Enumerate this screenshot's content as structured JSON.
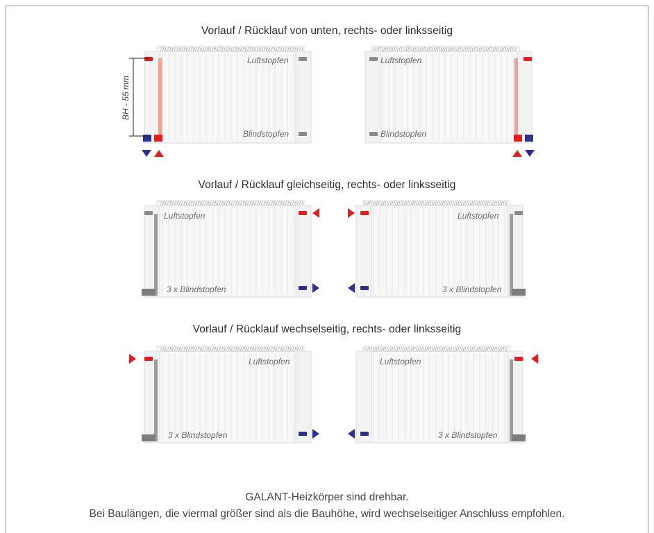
{
  "rows": [
    {
      "title": "Vorlauf / Rücklauf von unten, rechts- oder linksseitig"
    },
    {
      "title": "Vorlauf / Rücklauf gleichseitig, rechts- oder linksseitig"
    },
    {
      "title": "Vorlauf / Rücklauf wechselseitig, rechts- oder linksseitig"
    }
  ],
  "labels": {
    "luftstopfen": "Luftstopfen",
    "blindstopfen": "Blindstopfen",
    "blindstopfen_3x": "3 x Blindstopfen",
    "dimension": "BH - 55 mm"
  },
  "footer": {
    "line1": "GALANT-Heizkörper sind drehbar.",
    "line2": "Bei Baulängen, die viermal größer sind als die Bauhöhe, wird wechselseitiger Anschluss empfohlen."
  },
  "colors": {
    "supply": "#e02020",
    "return": "#2e2f8f",
    "pipe": "#8a8a8a"
  }
}
